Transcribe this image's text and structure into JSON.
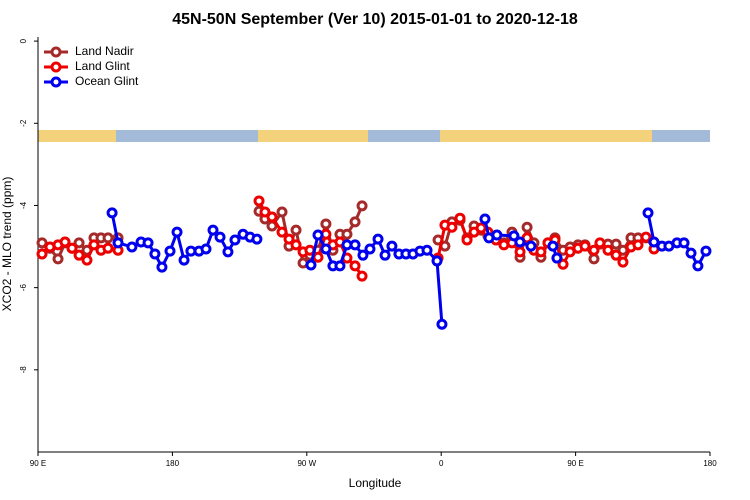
{
  "chart_data": {
    "type": "line",
    "title": "45N-50N September (Ver 10)   2015-01-01 to 2020-12-18",
    "x_label": "Longitude",
    "y_label": "XCO2 - MLO trend (ppm)",
    "xlim": [
      90,
      540
    ],
    "xticks": [
      {
        "value": 90,
        "label": "90 E"
      },
      {
        "value": 180,
        "label": "180"
      },
      {
        "value": 270,
        "label": "90 W"
      },
      {
        "value": 360,
        "label": "0"
      },
      {
        "value": 450,
        "label": "90 E"
      },
      {
        "value": 540,
        "label": "180"
      }
    ],
    "ylim": [
      -10,
      0
    ],
    "yticks": [
      0,
      -2,
      -4,
      -6,
      -8
    ],
    "legend": "top-left",
    "series": [
      {
        "name": "Land Nadir",
        "color": "#a52a2a",
        "x": [
          92.7,
          98.0,
          103.4,
          108.1,
          112.8,
          117.5,
          122.8,
          127.5,
          132.2,
          136.9,
          143.6,
          null,
          238.0,
          242.0,
          246.7,
          253.4,
          258.1,
          262.8,
          267.5,
          272.1,
          277.5,
          282.8,
          287.5,
          292.2,
          296.9,
          302.3,
          307.0,
          null,
          357.9,
          362.5,
          367.2,
          372.6,
          377.3,
          382.0,
          386.7,
          391.3,
          396.7,
          402.0,
          407.4,
          412.8,
          417.5,
          422.1,
          426.8,
          431.5,
          436.2,
          441.6,
          446.3,
          451.6,
          456.3,
          462.3,
          466.3,
          471.7,
          477.1,
          481.7,
          487.1,
          491.8,
          497.1
        ],
        "values": [
          -4.91,
          -5.04,
          -5.3,
          -4.91,
          -5.04,
          -4.91,
          -5.09,
          -4.79,
          -4.79,
          -4.79,
          -4.79,
          null,
          -4.14,
          -4.33,
          -4.5,
          -4.16,
          -4.99,
          -4.6,
          -5.4,
          -5.21,
          -5.09,
          -4.45,
          -5.09,
          -4.7,
          -4.7,
          -4.4,
          -4.01,
          null,
          -4.84,
          -4.99,
          -4.4,
          -4.36,
          -4.79,
          -4.5,
          -4.6,
          -4.74,
          -4.74,
          -4.91,
          -4.65,
          -5.26,
          -4.53,
          -4.91,
          -5.26,
          -4.91,
          -4.79,
          -5.09,
          -5.01,
          -4.96,
          -4.96,
          -5.3,
          -4.94,
          -4.94,
          -4.94,
          -5.09,
          -4.79,
          -4.79,
          -4.79
        ]
      },
      {
        "name": "Land Glint",
        "color": "#ee0000",
        "x": [
          92.7,
          98.0,
          103.4,
          108.1,
          112.8,
          117.5,
          122.8,
          127.5,
          132.2,
          136.9,
          143.6,
          null,
          238.0,
          242.0,
          246.7,
          253.4,
          258.1,
          262.8,
          267.5,
          272.1,
          277.5,
          282.8,
          287.5,
          292.2,
          296.9,
          302.3,
          307.0,
          null,
          357.9,
          362.5,
          367.2,
          372.6,
          377.3,
          382.0,
          386.7,
          391.3,
          396.7,
          402.0,
          407.4,
          412.8,
          417.5,
          422.1,
          426.8,
          431.5,
          436.2,
          441.6,
          446.3,
          451.6,
          456.3,
          462.3,
          466.3,
          471.7,
          477.1,
          481.7,
          487.1,
          491.8,
          497.1,
          502.5
        ],
        "values": [
          -5.18,
          -5.01,
          -4.96,
          -4.89,
          -5.04,
          -5.21,
          -5.33,
          -4.96,
          -5.09,
          -5.04,
          -5.09,
          null,
          -3.89,
          -4.16,
          -4.28,
          -4.65,
          -4.82,
          -4.96,
          -5.13,
          -5.09,
          -5.26,
          -4.7,
          -4.96,
          -4.89,
          -5.28,
          -5.47,
          -5.72,
          null,
          -5.28,
          -4.48,
          -4.53,
          -4.31,
          -4.84,
          -4.65,
          -4.55,
          -4.65,
          -4.84,
          -4.96,
          -4.91,
          -5.13,
          -4.79,
          -5.09,
          -5.13,
          -4.91,
          -4.84,
          -5.43,
          -5.13,
          -5.04,
          -4.99,
          -5.09,
          -4.91,
          -5.09,
          -5.21,
          -5.38,
          -5.01,
          -4.96,
          -4.77,
          -5.06
        ]
      },
      {
        "name": "Ocean Glint",
        "color": "#0000ee",
        "x": [
          139.6,
          143.6,
          152.9,
          159.0,
          163.7,
          168.3,
          173.0,
          178.4,
          183.1,
          187.8,
          192.4,
          197.8,
          202.5,
          207.2,
          211.9,
          217.2,
          221.9,
          227.3,
          232.0,
          236.6,
          null,
          272.8,
          277.5,
          282.8,
          287.5,
          292.2,
          296.9,
          302.3,
          307.6,
          312.3,
          317.7,
          322.4,
          327.0,
          331.7,
          336.4,
          341.1,
          345.8,
          350.5,
          357.2,
          360.5,
          null,
          389.3,
          392.0,
          397.3,
          408.7,
          412.7,
          420.1,
          null,
          434.8,
          437.5,
          null,
          498.5,
          502.5,
          507.8,
          512.5,
          517.9,
          522.6,
          527.3,
          531.9,
          537.3
        ],
        "values": [
          -4.18,
          -4.91,
          -5.01,
          -4.89,
          -4.91,
          -5.18,
          -5.5,
          -5.11,
          -4.65,
          -5.33,
          -5.11,
          -5.11,
          -5.06,
          -4.6,
          -4.77,
          -5.13,
          -4.84,
          -4.7,
          -4.77,
          -4.82,
          null,
          -5.45,
          -4.72,
          -5.06,
          -5.47,
          -5.47,
          -4.96,
          -4.96,
          -5.21,
          -5.06,
          -4.82,
          -5.21,
          -4.99,
          -5.18,
          -5.18,
          -5.18,
          -5.11,
          -5.09,
          -5.35,
          -6.89,
          null,
          -4.33,
          -4.79,
          -4.72,
          -4.74,
          -4.89,
          -4.99,
          null,
          -4.99,
          -5.28,
          null,
          -4.18,
          -4.89,
          -4.99,
          -4.99,
          -4.91,
          -4.91,
          -5.16,
          -5.47,
          -5.11
        ]
      }
    ]
  }
}
